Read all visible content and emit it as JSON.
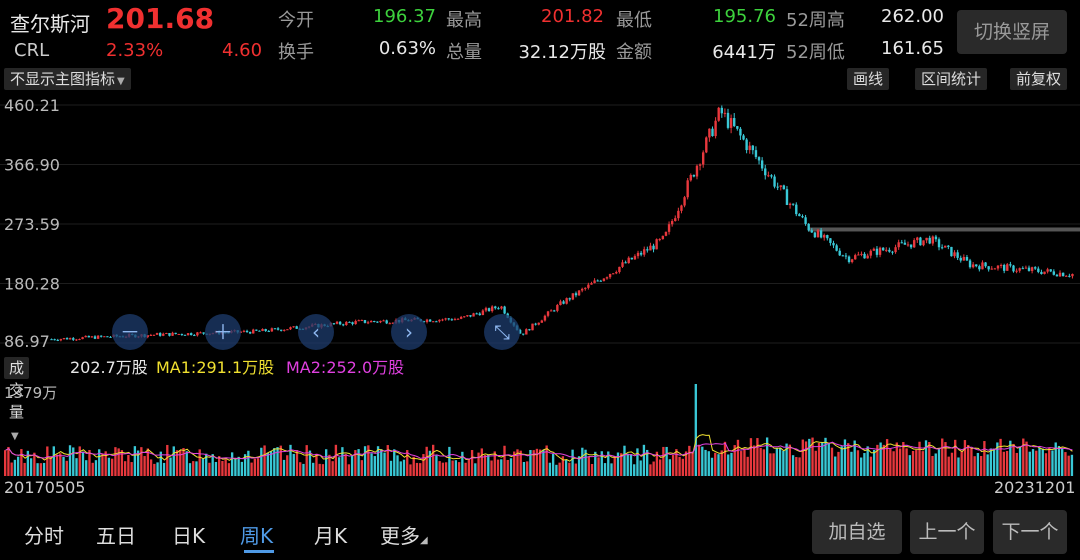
{
  "stock": {
    "name": "查尔斯河",
    "price": "201.68",
    "code": "CRL",
    "change_pct": "2.33%",
    "change": "4.60"
  },
  "fields": [
    {
      "label": "今开",
      "value": "196.37",
      "color": "#3dd23d"
    },
    {
      "label": "最高",
      "value": "201.82",
      "color": "#f03030"
    },
    {
      "label": "最低",
      "value": "195.76",
      "color": "#3dd23d"
    },
    {
      "label": "52周高",
      "value": "262.00",
      "color": "#e8e8e8"
    },
    {
      "label": "换手",
      "value": "0.63%",
      "color": "#e8e8e8"
    },
    {
      "label": "总量",
      "value": "32.12万股",
      "color": "#e8e8e8"
    },
    {
      "label": "金额",
      "value": "6441万",
      "color": "#e8e8e8"
    },
    {
      "label": "52周低",
      "value": "161.65",
      "color": "#e8e8e8"
    }
  ],
  "switch_label": "切换竖屏",
  "toolbar": {
    "indicator": "不显示主图指标",
    "draw": "画线",
    "range_stat": "区间统计",
    "adjust": "前复权"
  },
  "chart_data": {
    "type": "candlestick",
    "y_ticks": [
      "460.21",
      "366.90",
      "273.59",
      "180.28",
      "86.97"
    ],
    "x_start": "20170505",
    "x_end": "20231201",
    "hline": 265
  },
  "volume": {
    "selector": "成交量",
    "current": "202.7万股",
    "ma1": "MA1:291.1万股",
    "ma2": "MA2:252.0万股",
    "ma1_color": "#f0e030",
    "ma2_color": "#e040e0",
    "max_label": "1379万"
  },
  "tabs": [
    {
      "label": "分时"
    },
    {
      "label": "五日"
    },
    {
      "label": "日K"
    },
    {
      "label": "周K"
    },
    {
      "label": "月K"
    },
    {
      "label": "更多"
    }
  ],
  "active_tab": "周K",
  "bottom": {
    "add": "加自选",
    "prev": "上一个",
    "next": "下一个"
  },
  "overlay_controls": [
    {
      "icon": "zoom-out-icon",
      "glyph": "－"
    },
    {
      "icon": "zoom-in-icon",
      "glyph": "＋"
    },
    {
      "icon": "chevron-left-icon",
      "glyph": "‹"
    },
    {
      "icon": "chevron-right-icon",
      "glyph": "›"
    },
    {
      "icon": "collapse-icon",
      "glyph": "⤡"
    }
  ]
}
